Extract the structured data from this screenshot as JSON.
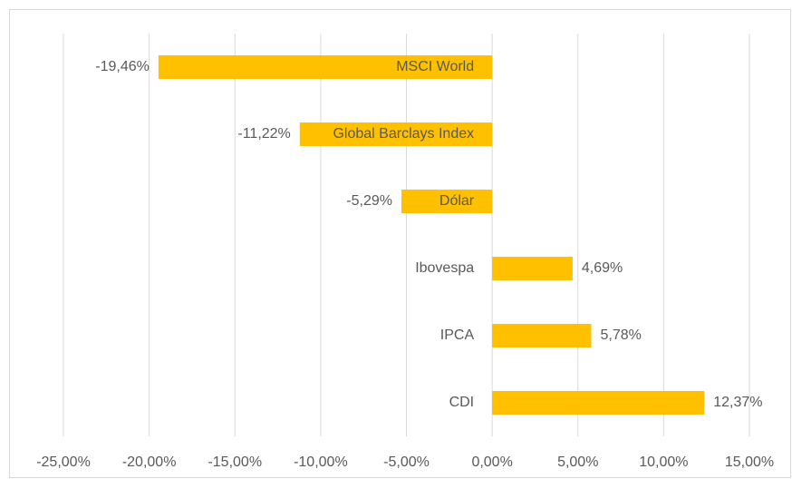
{
  "chart_data": {
    "type": "barh",
    "categories": [
      "MSCI World",
      "Global Barclays Index",
      "Dólar",
      "Ibovespa",
      "IPCA",
      "CDI"
    ],
    "values": [
      -19.46,
      -11.22,
      -5.29,
      4.69,
      5.78,
      12.37
    ],
    "value_labels": [
      "-19,46%",
      "-11,22%",
      "-5,29%",
      "4,69%",
      "5,78%",
      "12,37%"
    ],
    "color": "#ffc000",
    "xlim": [
      -25,
      15
    ],
    "xticks": [
      {
        "value": -25,
        "label": "-25,00%"
      },
      {
        "value": -20,
        "label": "-20,00%"
      },
      {
        "value": -15,
        "label": "-15,00%"
      },
      {
        "value": -10,
        "label": "-10,00%"
      },
      {
        "value": -5,
        "label": "-5,00%"
      },
      {
        "value": 0,
        "label": "0,00%"
      },
      {
        "value": 5,
        "label": "5,00%"
      },
      {
        "value": 10,
        "label": "10,00%"
      },
      {
        "value": 15,
        "label": "15,00%"
      }
    ],
    "grid": true
  }
}
